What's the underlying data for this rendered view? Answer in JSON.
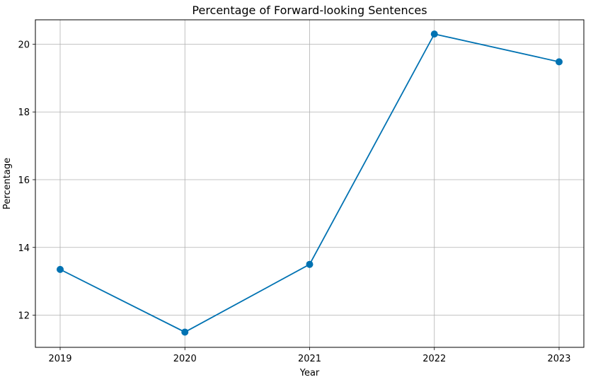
{
  "chart_data": {
    "type": "line",
    "title": "Percentage of Forward-looking Sentences",
    "xlabel": "Year",
    "ylabel": "Percentage",
    "x": [
      "2019",
      "2020",
      "2021",
      "2022",
      "2023"
    ],
    "series": [
      {
        "values": [
          13.35,
          11.5,
          13.5,
          20.3,
          19.48
        ]
      }
    ],
    "ylim": [
      11.05,
      20.72
    ],
    "yticks": [
      12,
      14,
      16,
      18,
      20
    ],
    "grid": true,
    "marker": "circle",
    "color": "#0072b2"
  }
}
